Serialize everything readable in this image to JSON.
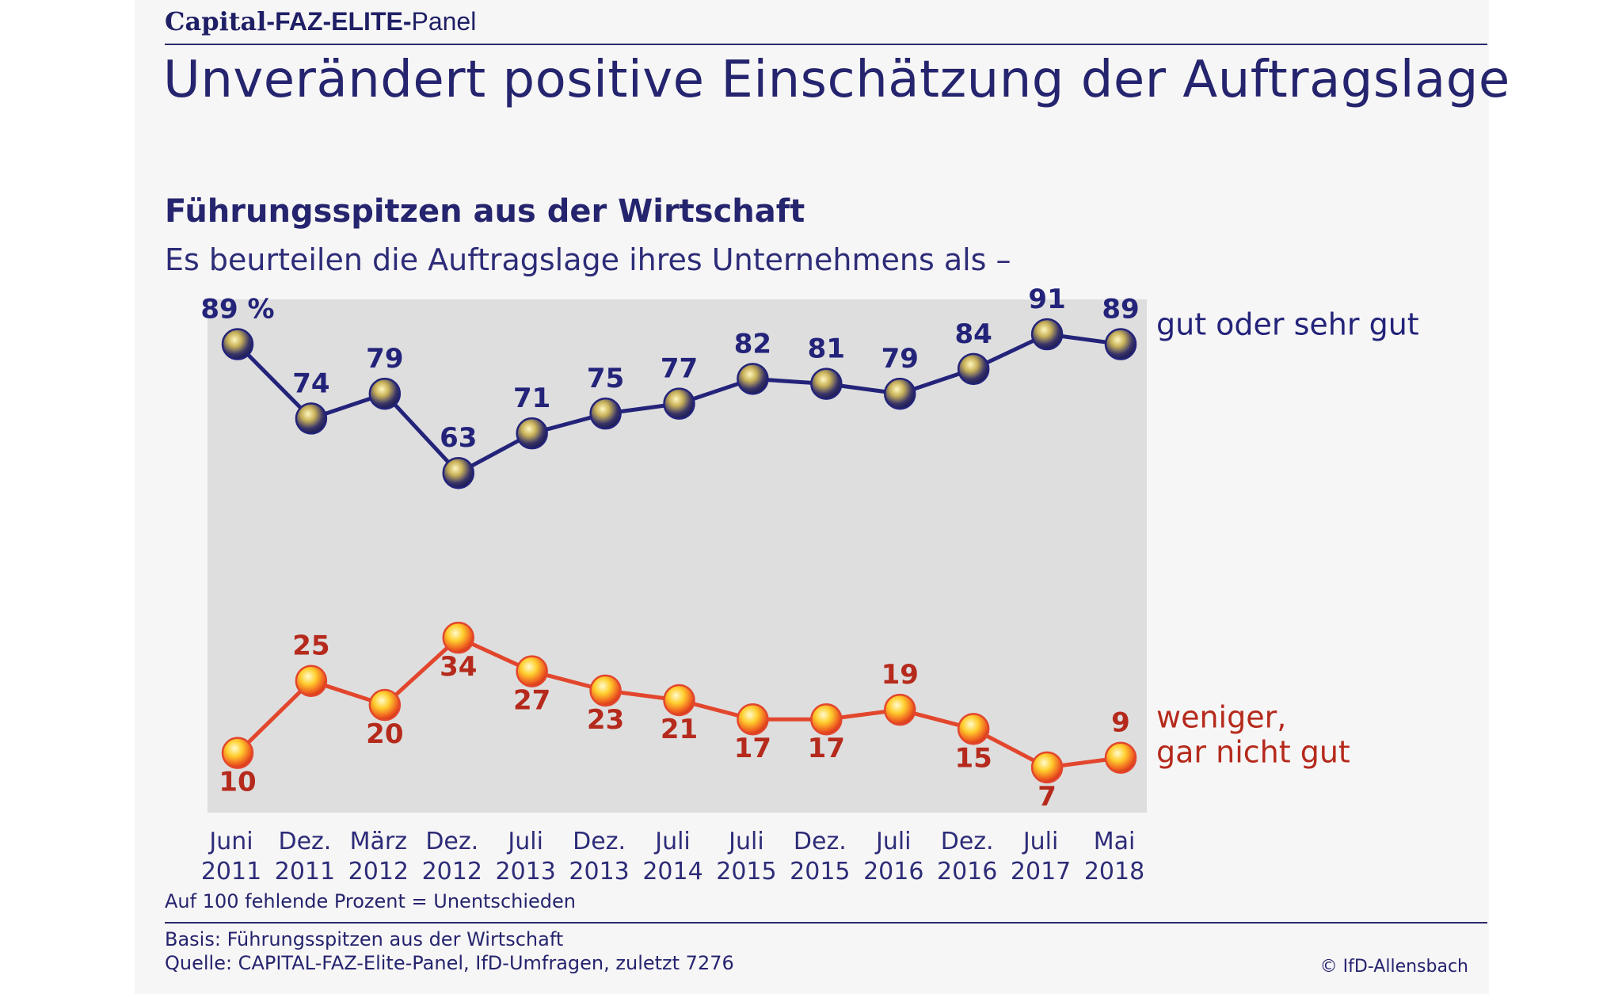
{
  "header": {
    "brand_capital": "Capital",
    "brand_faz": "-FAZ-ELITE-",
    "brand_panel": "Panel",
    "title": "Unverändert positive Einschätzung der Auftragslage"
  },
  "chart_data": {
    "type": "line",
    "title": "Führungsspitzen aus der Wirtschaft",
    "subtitle": "Es beurteilen die Auftragslage ihres Unternehmens als –",
    "categories": [
      [
        "Juni",
        "2011"
      ],
      [
        "Dez.",
        "2011"
      ],
      [
        "März",
        "2012"
      ],
      [
        "Dez.",
        "2012"
      ],
      [
        "Juli",
        "2013"
      ],
      [
        "Dez.",
        "2013"
      ],
      [
        "Juli",
        "2014"
      ],
      [
        "Juli",
        "2015"
      ],
      [
        "Dez.",
        "2015"
      ],
      [
        "Juli",
        "2016"
      ],
      [
        "Dez.",
        "2016"
      ],
      [
        "Juli",
        "2017"
      ],
      [
        "Mai",
        "2018"
      ]
    ],
    "series": [
      {
        "name": "gut oder sehr gut",
        "label_lines": [
          "gut oder sehr gut"
        ],
        "color": "#23237a",
        "values": [
          89,
          74,
          79,
          63,
          71,
          75,
          77,
          82,
          81,
          79,
          84,
          91,
          89
        ],
        "first_label_suffix": " %"
      },
      {
        "name": "weniger, gar nicht gut",
        "label_lines": [
          "weniger,",
          "gar nicht gut"
        ],
        "color": "#e2462c",
        "values": [
          10,
          25,
          20,
          34,
          27,
          23,
          21,
          17,
          17,
          19,
          15,
          7,
          9
        ]
      }
    ],
    "ylim": [
      0,
      100
    ],
    "grid": false,
    "legend": "right"
  },
  "footer": {
    "note": "Auf 100 fehlende Prozent = Unentschieden",
    "basis": "Basis: Führungsspitzen aus der Wirtschaft",
    "source": "Quelle: CAPITAL-FAZ-Elite-Panel, IfD-Umfragen, zuletzt 7276",
    "copyright": "© IfD-Allensbach"
  }
}
